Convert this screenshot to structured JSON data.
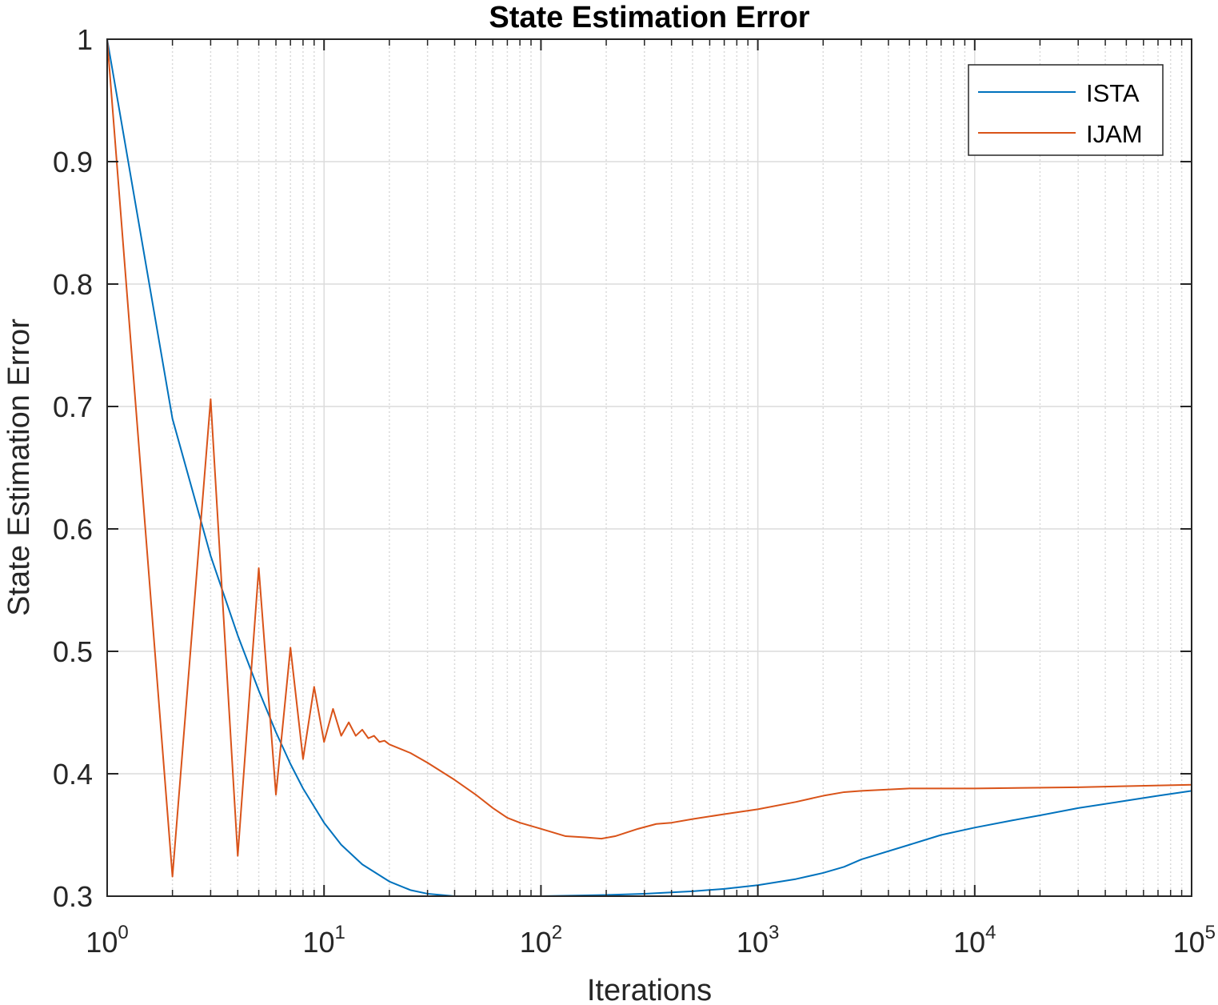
{
  "chart_data": {
    "type": "line",
    "title": "State Estimation Error",
    "xlabel": "Iterations",
    "ylabel": "State Estimation Error",
    "xscale": "log",
    "xlim": [
      1,
      100000
    ],
    "ylim": [
      0.3,
      1
    ],
    "x_ticks": [
      {
        "base": "10",
        "exp": "0",
        "value": 1
      },
      {
        "base": "10",
        "exp": "1",
        "value": 10
      },
      {
        "base": "10",
        "exp": "2",
        "value": 100
      },
      {
        "base": "10",
        "exp": "3",
        "value": 1000
      },
      {
        "base": "10",
        "exp": "4",
        "value": 10000
      },
      {
        "base": "10",
        "exp": "5",
        "value": 100000
      }
    ],
    "y_ticks": [
      {
        "label": "0.3",
        "value": 0.3
      },
      {
        "label": "0.4",
        "value": 0.4
      },
      {
        "label": "0.5",
        "value": 0.5
      },
      {
        "label": "0.6",
        "value": 0.6
      },
      {
        "label": "0.7",
        "value": 0.7
      },
      {
        "label": "0.8",
        "value": 0.8
      },
      {
        "label": "0.9",
        "value": 0.9
      },
      {
        "label": "1",
        "value": 1
      }
    ],
    "grid": true,
    "legend_position": "top-right",
    "series": [
      {
        "name": "ISTA",
        "color": "#0072BD",
        "points": [
          [
            1,
            1.0
          ],
          [
            2,
            0.69
          ],
          [
            3,
            0.578
          ],
          [
            4,
            0.513
          ],
          [
            5,
            0.468
          ],
          [
            6,
            0.434
          ],
          [
            7,
            0.408
          ],
          [
            8,
            0.388
          ],
          [
            10,
            0.36
          ],
          [
            12,
            0.342
          ],
          [
            15,
            0.326
          ],
          [
            20,
            0.312
          ],
          [
            25,
            0.305
          ],
          [
            30,
            0.302
          ],
          [
            40,
            0.3
          ],
          [
            60,
            0.3
          ],
          [
            100,
            0.3
          ],
          [
            200,
            0.301
          ],
          [
            300,
            0.302
          ],
          [
            500,
            0.304
          ],
          [
            700,
            0.306
          ],
          [
            1000,
            0.309
          ],
          [
            1500,
            0.314
          ],
          [
            2000,
            0.319
          ],
          [
            2500,
            0.324
          ],
          [
            3000,
            0.33
          ],
          [
            5000,
            0.342
          ],
          [
            7000,
            0.35
          ],
          [
            10000,
            0.356
          ],
          [
            15000,
            0.362
          ],
          [
            20000,
            0.366
          ],
          [
            30000,
            0.372
          ],
          [
            50000,
            0.378
          ],
          [
            70000,
            0.382
          ],
          [
            100000,
            0.386
          ]
        ]
      },
      {
        "name": "IJAM",
        "color": "#D95319",
        "points": [
          [
            1,
            1.0
          ],
          [
            2,
            0.316
          ],
          [
            3,
            0.706
          ],
          [
            4,
            0.333
          ],
          [
            5,
            0.568
          ],
          [
            6,
            0.383
          ],
          [
            7,
            0.503
          ],
          [
            8,
            0.412
          ],
          [
            9,
            0.471
          ],
          [
            10,
            0.426
          ],
          [
            11,
            0.453
          ],
          [
            12,
            0.431
          ],
          [
            13,
            0.442
          ],
          [
            14,
            0.431
          ],
          [
            15,
            0.436
          ],
          [
            16,
            0.429
          ],
          [
            17,
            0.431
          ],
          [
            18,
            0.426
          ],
          [
            19,
            0.427
          ],
          [
            20,
            0.424
          ],
          [
            25,
            0.417
          ],
          [
            30,
            0.409
          ],
          [
            40,
            0.395
          ],
          [
            50,
            0.383
          ],
          [
            60,
            0.372
          ],
          [
            70,
            0.364
          ],
          [
            80,
            0.36
          ],
          [
            100,
            0.355
          ],
          [
            130,
            0.349
          ],
          [
            160,
            0.348
          ],
          [
            190,
            0.347
          ],
          [
            220,
            0.349
          ],
          [
            280,
            0.355
          ],
          [
            340,
            0.359
          ],
          [
            400,
            0.36
          ],
          [
            500,
            0.363
          ],
          [
            700,
            0.367
          ],
          [
            1000,
            0.371
          ],
          [
            1500,
            0.377
          ],
          [
            2000,
            0.382
          ],
          [
            2500,
            0.385
          ],
          [
            3000,
            0.386
          ],
          [
            5000,
            0.388
          ],
          [
            10000,
            0.388
          ],
          [
            30000,
            0.389
          ],
          [
            100000,
            0.391
          ]
        ]
      }
    ]
  }
}
